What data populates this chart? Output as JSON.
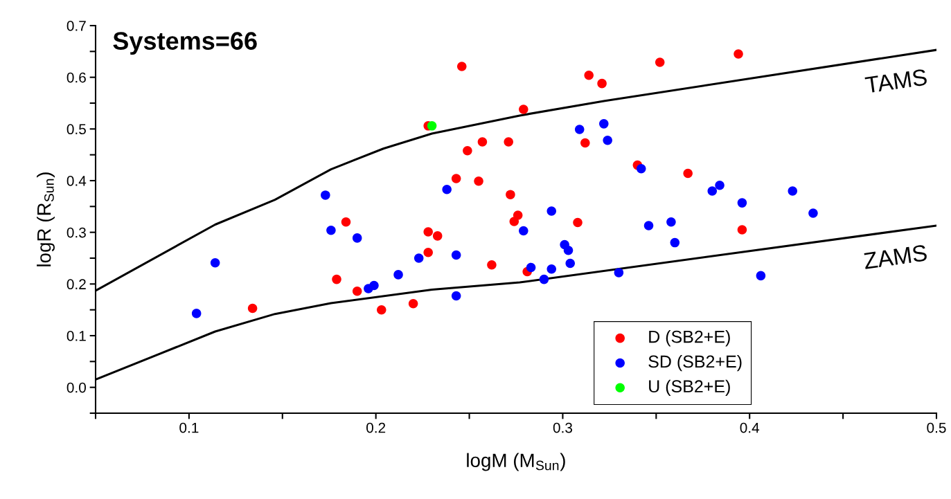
{
  "chart_data": {
    "type": "scatter",
    "xlabel": "logM (M$_{Sun}$)",
    "ylabel": "logR (R$_{Sun}$)",
    "xlim": [
      0.05,
      0.5
    ],
    "ylim": [
      -0.05,
      0.7
    ],
    "xticks": [
      {
        "value": 0.05,
        "label": null
      },
      0.1,
      {
        "value": 0.15,
        "label": null
      },
      0.2,
      {
        "value": 0.25,
        "label": null
      },
      0.3,
      {
        "value": 0.35,
        "label": null
      },
      0.4,
      {
        "value": 0.45,
        "label": null
      },
      0.5
    ],
    "yticks": [
      {
        "value": -0.05,
        "label": null
      },
      {
        "value": 0,
        "label": "0.0"
      },
      {
        "value": 0.05,
        "label": null
      },
      0.1,
      {
        "value": 0.15,
        "label": null
      },
      0.2,
      {
        "value": 0.25,
        "label": null
      },
      0.3,
      {
        "value": 0.35,
        "label": null
      },
      0.4,
      {
        "value": 0.45,
        "label": null
      },
      0.5,
      {
        "value": 0.55,
        "label": null
      },
      0.6,
      {
        "value": 0.65,
        "label": null
      },
      0.7
    ],
    "grid": false,
    "legend": "bottom right",
    "marker": "circle",
    "annotations": [
      "Systems=66"
    ],
    "series": [
      {
        "name": "D (SB2+E)",
        "color": "#ff0000",
        "x": [
          0.246,
          0.228,
          0.314,
          0.321,
          0.279,
          0.352,
          0.394,
          0.257,
          0.271,
          0.312,
          0.249,
          0.243,
          0.255,
          0.34,
          0.367,
          0.272,
          0.276,
          0.274,
          0.308,
          0.396,
          0.184,
          0.228,
          0.233,
          0.228,
          0.262,
          0.179,
          0.19,
          0.203,
          0.22,
          0.134,
          0.281
        ],
        "values": [
          0.621,
          0.506,
          0.604,
          0.588,
          0.538,
          0.629,
          0.645,
          0.475,
          0.475,
          0.473,
          0.458,
          0.404,
          0.399,
          0.43,
          0.414,
          0.373,
          0.333,
          0.321,
          0.319,
          0.305,
          0.32,
          0.301,
          0.293,
          0.261,
          0.237,
          0.209,
          0.186,
          0.15,
          0.162,
          0.153,
          0.224
        ]
      },
      {
        "name": "SD (SB2+E)",
        "color": "#0000ff",
        "x": [
          0.173,
          0.238,
          0.176,
          0.19,
          0.114,
          0.104,
          0.223,
          0.212,
          0.196,
          0.199,
          0.243,
          0.243,
          0.309,
          0.322,
          0.324,
          0.342,
          0.384,
          0.38,
          0.396,
          0.423,
          0.434,
          0.294,
          0.279,
          0.346,
          0.358,
          0.36,
          0.301,
          0.303,
          0.304,
          0.283,
          0.294,
          0.29,
          0.33,
          0.406
        ],
        "values": [
          0.372,
          0.383,
          0.304,
          0.289,
          0.241,
          0.143,
          0.25,
          0.218,
          0.191,
          0.197,
          0.256,
          0.177,
          0.499,
          0.51,
          0.478,
          0.423,
          0.391,
          0.38,
          0.357,
          0.38,
          0.337,
          0.341,
          0.303,
          0.313,
          0.32,
          0.28,
          0.276,
          0.265,
          0.24,
          0.232,
          0.229,
          0.209,
          0.222,
          0.216
        ]
      },
      {
        "name": "U (SB2+E)",
        "color": "#00ff00",
        "x": [
          0.23
        ],
        "values": [
          0.506
        ]
      },
      {
        "type": "line",
        "name": "TAMS",
        "color": "#000000",
        "marker": "none",
        "x": [
          0.05,
          0.114,
          0.146,
          0.176,
          0.204,
          0.23,
          0.277,
          0.322,
          0.5
        ],
        "values": [
          0.187,
          0.315,
          0.363,
          0.422,
          0.462,
          0.491,
          0.526,
          0.554,
          0.653
        ]
      },
      {
        "type": "line",
        "name": "ZAMS",
        "color": "#000000",
        "marker": "none",
        "x": [
          0.05,
          0.114,
          0.146,
          0.176,
          0.23,
          0.277,
          0.5
        ],
        "values": [
          0.015,
          0.108,
          0.142,
          0.163,
          0.189,
          0.203,
          0.313
        ]
      }
    ]
  }
}
